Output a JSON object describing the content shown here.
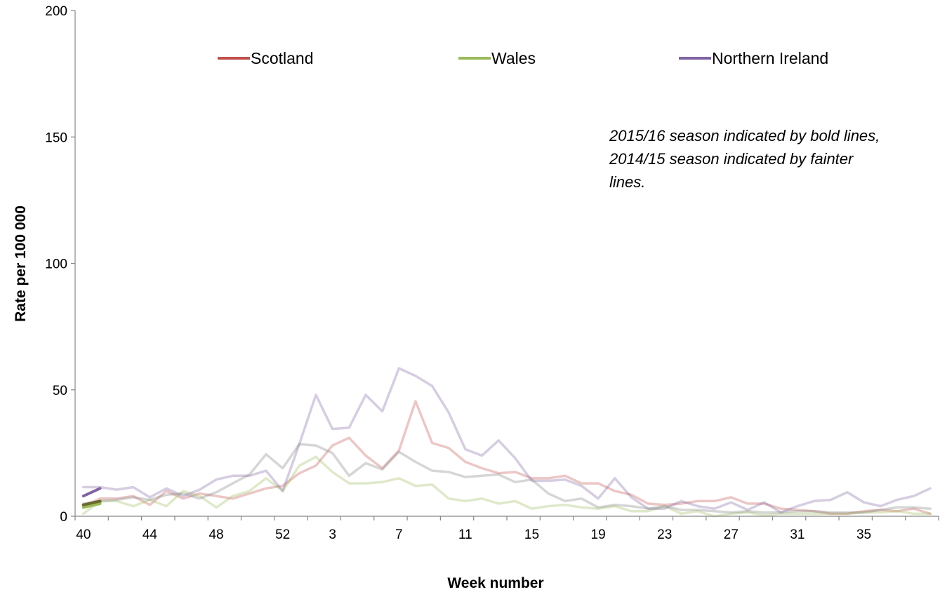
{
  "chart_data": {
    "type": "line",
    "xlabel": "Week number",
    "ylabel": "Rate per 100 000",
    "ylim": [
      0,
      200
    ],
    "yticks": [
      0,
      50,
      100,
      150,
      200
    ],
    "weeks": [
      40,
      41,
      42,
      43,
      44,
      45,
      46,
      47,
      48,
      49,
      50,
      51,
      52,
      1,
      2,
      3,
      4,
      5,
      6,
      7,
      8,
      9,
      10,
      11,
      12,
      13,
      14,
      15,
      16,
      17,
      18,
      19,
      20,
      21,
      22,
      23,
      24,
      25,
      26,
      27,
      28,
      29,
      30,
      31,
      32,
      33,
      34,
      35,
      36,
      37,
      38,
      39
    ],
    "x_tick_labels": [
      "40",
      "44",
      "48",
      "52",
      "3",
      "7",
      "11",
      "15",
      "19",
      "23",
      "27",
      "31",
      "35"
    ],
    "legend": [
      {
        "name": "Scotland",
        "color": "#c0504d"
      },
      {
        "name": "Wales",
        "color": "#9bbb59"
      },
      {
        "name": "Northern Ireland",
        "color": "#8064a2"
      }
    ],
    "annotation": [
      "2015/16 season indicated by bold lines,",
      "2014/15 season indicated by fainter",
      "lines."
    ],
    "series": [
      {
        "season": "2014/15",
        "color": "#c0504d",
        "values": [
          4,
          7,
          7,
          8,
          4.5,
          10,
          7,
          9,
          8,
          7,
          9,
          11,
          12,
          17,
          20,
          28,
          31,
          24,
          19,
          26,
          45.5,
          29,
          27,
          21.5,
          19,
          17,
          17.5,
          15,
          15,
          16,
          13,
          13,
          10,
          8.5,
          5,
          4.5,
          5,
          6,
          6,
          7.5,
          5,
          5,
          3,
          2.5,
          2,
          1,
          1,
          2,
          2.5,
          2,
          3,
          1
        ]
      },
      {
        "season": "2014/15",
        "color": "#9bbb59",
        "values": [
          1,
          6,
          6,
          4,
          6.5,
          4,
          10,
          8,
          3.5,
          8,
          10,
          15,
          10,
          20,
          23.5,
          17.5,
          13,
          13,
          13.5,
          15,
          12,
          12.5,
          7,
          6,
          7,
          5,
          6,
          3,
          4,
          4.5,
          3.5,
          3,
          4,
          2,
          2,
          4,
          1,
          2,
          0,
          1,
          1.5,
          0.5,
          1,
          1,
          1,
          1,
          1,
          1.5,
          1.5,
          2,
          1,
          1
        ]
      },
      {
        "season": "2014/15",
        "color": "#8064a2",
        "values": [
          11.5,
          11.5,
          10.5,
          11.5,
          7.5,
          11,
          8,
          10.5,
          14.5,
          16,
          16,
          18,
          10,
          28.5,
          48,
          34.5,
          35,
          48,
          41.5,
          58.5,
          55.5,
          51.5,
          41,
          26.5,
          24,
          30,
          23,
          14,
          14,
          14.5,
          12,
          7,
          15,
          7.5,
          3,
          3,
          6,
          4,
          3,
          5.5,
          2.5,
          5.5,
          1.5,
          4,
          6,
          6.5,
          9.5,
          5.5,
          4,
          6.5,
          8,
          11
        ]
      },
      {
        "season": "2014/15",
        "color": "#808080",
        "values": [
          5,
          6,
          6.5,
          7.5,
          6.5,
          8.5,
          9,
          7,
          9.5,
          13,
          16.5,
          24.5,
          19,
          28.5,
          28,
          25,
          16,
          21,
          18.5,
          25.5,
          21.5,
          18,
          17.5,
          15.5,
          16,
          16.5,
          13.5,
          14.5,
          9,
          6,
          7,
          3.5,
          4.5,
          4,
          3,
          4,
          2.5,
          2.5,
          2,
          1.5,
          2,
          1.5,
          1.5,
          2,
          2,
          1.5,
          1.5,
          1.5,
          2.5,
          3.5,
          3.5,
          3
        ]
      },
      {
        "season": "2015/16",
        "color": "#c0504d",
        "values": [
          4.5,
          5.5
        ]
      },
      {
        "season": "2015/16",
        "color": "#9bbb59",
        "values": [
          3.5,
          5
        ]
      },
      {
        "season": "2015/16",
        "color": "#8064a2",
        "values": [
          8,
          11
        ]
      },
      {
        "season": "2015/16",
        "color": "#6b6b2f",
        "values": [
          4.5,
          6
        ]
      }
    ]
  }
}
